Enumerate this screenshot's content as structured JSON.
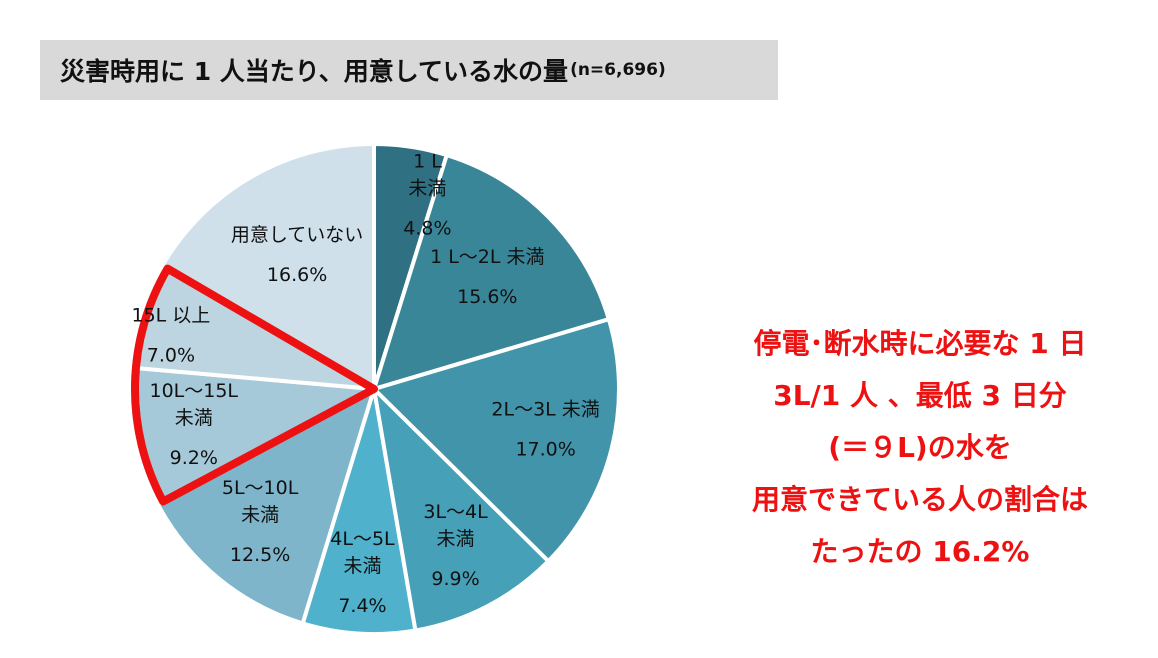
{
  "header": {
    "title": "災害時用に 1 人当たり、用意している水の量",
    "sample": "(n=6,696)"
  },
  "chart_data": {
    "type": "pie",
    "title": "災害時用に 1 人当たり、用意している水の量",
    "subtitle": "(n=6,696)",
    "start": "top",
    "direction": "clockwise",
    "slices": [
      {
        "label_lines": [
          "1 L",
          "未満"
        ],
        "value": 4.8,
        "value_label": "4.8%",
        "color": "#2f7183"
      },
      {
        "label_lines": [
          "1 L～2L 未満"
        ],
        "value": 15.6,
        "value_label": "15.6%",
        "color": "#3a8699"
      },
      {
        "label_lines": [
          "2L～3L 未満"
        ],
        "value": 17.0,
        "value_label": "17.0%",
        "color": "#4294aa"
      },
      {
        "label_lines": [
          "3L～4L",
          "未満"
        ],
        "value": 9.9,
        "value_label": "9.9%",
        "color": "#46a0b8"
      },
      {
        "label_lines": [
          "4L～5L",
          "未満"
        ],
        "value": 7.4,
        "value_label": "7.4%",
        "color": "#4fb1cc"
      },
      {
        "label_lines": [
          "5L～10L",
          "未満"
        ],
        "value": 12.5,
        "value_label": "12.5%",
        "color": "#7fb5cb"
      },
      {
        "label_lines": [
          "10L～15L",
          "未満"
        ],
        "value": 9.2,
        "value_label": "9.2%",
        "color": "#a6c9d9"
      },
      {
        "label_lines": [
          "15L 以上"
        ],
        "value": 7.0,
        "value_label": "7.0%",
        "color": "#bdd5e1"
      },
      {
        "label_lines": [
          "用意していない"
        ],
        "value": 16.6,
        "value_label": "16.6%",
        "color": "#cfe0ea"
      }
    ],
    "highlight": {
      "slices": [
        "10L～15L 未満",
        "15L 以上"
      ],
      "color": "#ee1111"
    }
  },
  "callout": {
    "lines": [
      "停電･断水時に必要な 1 日",
      "3L/1 人 、最低 3 日分",
      "(＝９L)の水を",
      "用意できている人の割合は",
      "たったの 16.2%"
    ],
    "color": "#ee1111"
  }
}
